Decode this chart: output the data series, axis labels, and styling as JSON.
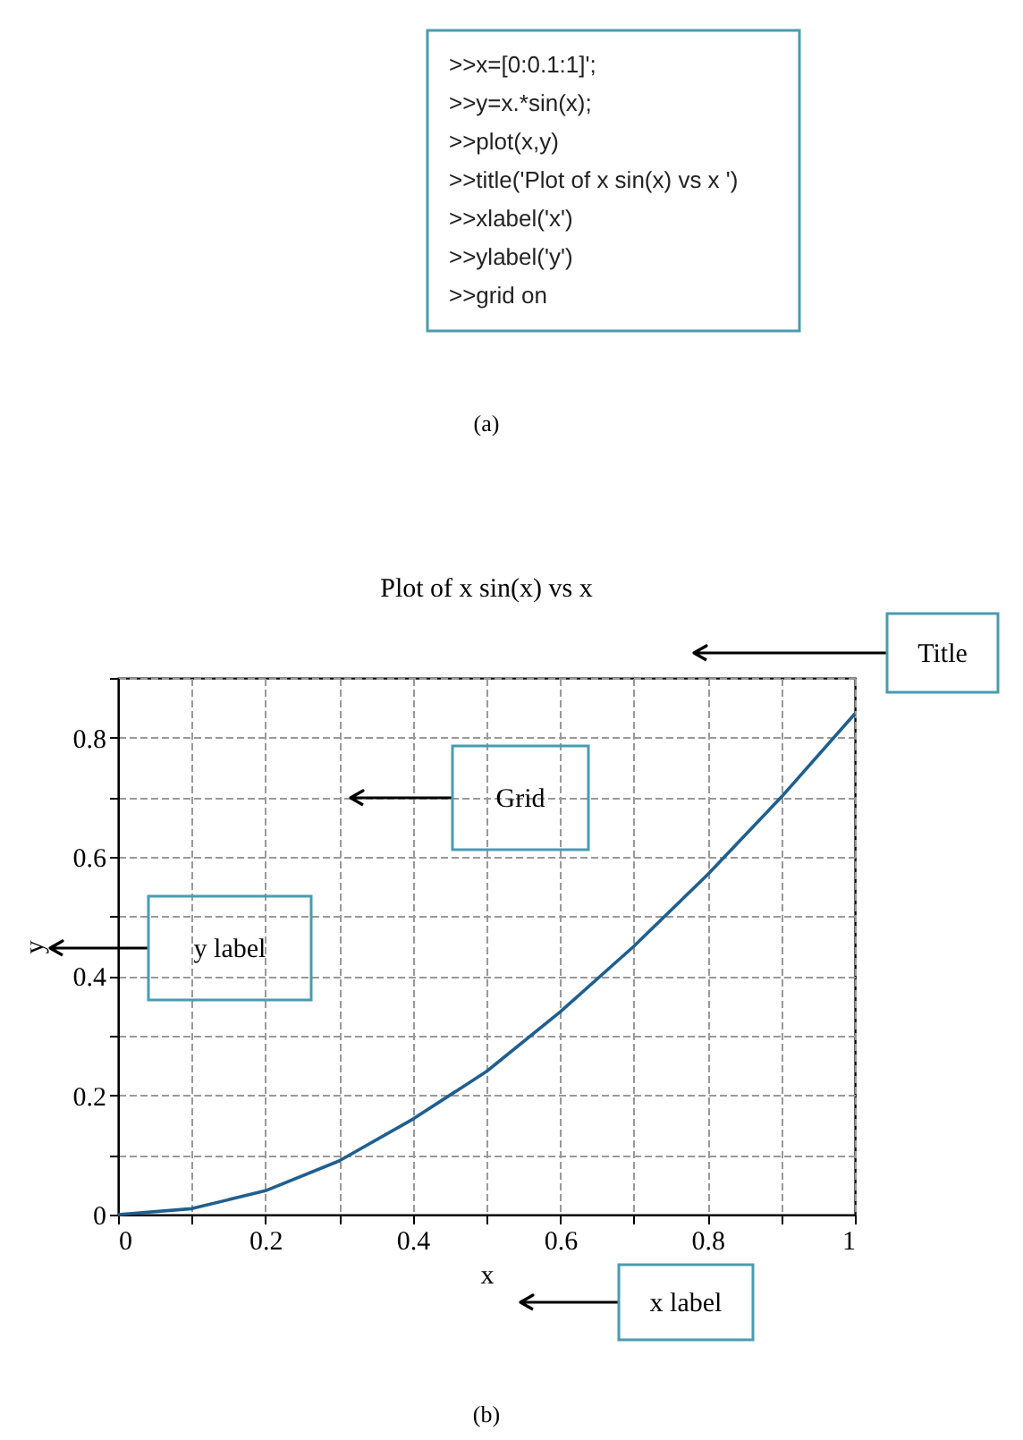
{
  "chart_data": [
    {
      "type": "other",
      "annotations": [
        ">>x=[0:0.1:1]';",
        ">>y=x.*sin(x);",
        ">>plot(x,y)",
        ">>title('Plot of x sin(x) vs x ')",
        ">>xlabel('x')",
        ">>ylabel('y')",
        ">>grid on",
        "(a)"
      ]
    },
    {
      "type": "line",
      "title": "Plot of x sin(x) vs x",
      "xlabel": "x",
      "ylabel": "y",
      "x": [
        0,
        0.1,
        0.2,
        0.3,
        0.4,
        0.5,
        0.6,
        0.7,
        0.8,
        0.9,
        1
      ],
      "series": [
        {
          "color": "#1f5f8f",
          "values": [
            0,
            0.01,
            0.04,
            0.09,
            0.16,
            0.24,
            0.34,
            0.45,
            0.57,
            0.7,
            0.84
          ]
        }
      ],
      "xlim": [
        0,
        1
      ],
      "ylim": [
        0,
        0.9
      ],
      "xticks": [
        0,
        {
          "value": 0.1,
          "label": null
        },
        0.2,
        {
          "value": 0.3,
          "label": null
        },
        0.4,
        {
          "value": 0.5,
          "label": null
        },
        0.6,
        {
          "value": 0.7,
          "label": null
        },
        0.8,
        {
          "value": 0.9,
          "label": null
        },
        1
      ],
      "yticks": [
        0,
        {
          "value": 0.1,
          "label": null
        },
        0.2,
        {
          "value": 0.3,
          "label": null
        },
        0.4,
        {
          "value": 0.5,
          "label": null
        },
        0.6,
        {
          "value": 0.7,
          "label": null
        },
        0.8,
        {
          "value": 0.9,
          "label": null
        }
      ],
      "grid": true,
      "marker": "none",
      "line_style": "solid",
      "annotations": [
        "Title",
        "Grid",
        "y label",
        "x label",
        "(b)"
      ]
    }
  ]
}
